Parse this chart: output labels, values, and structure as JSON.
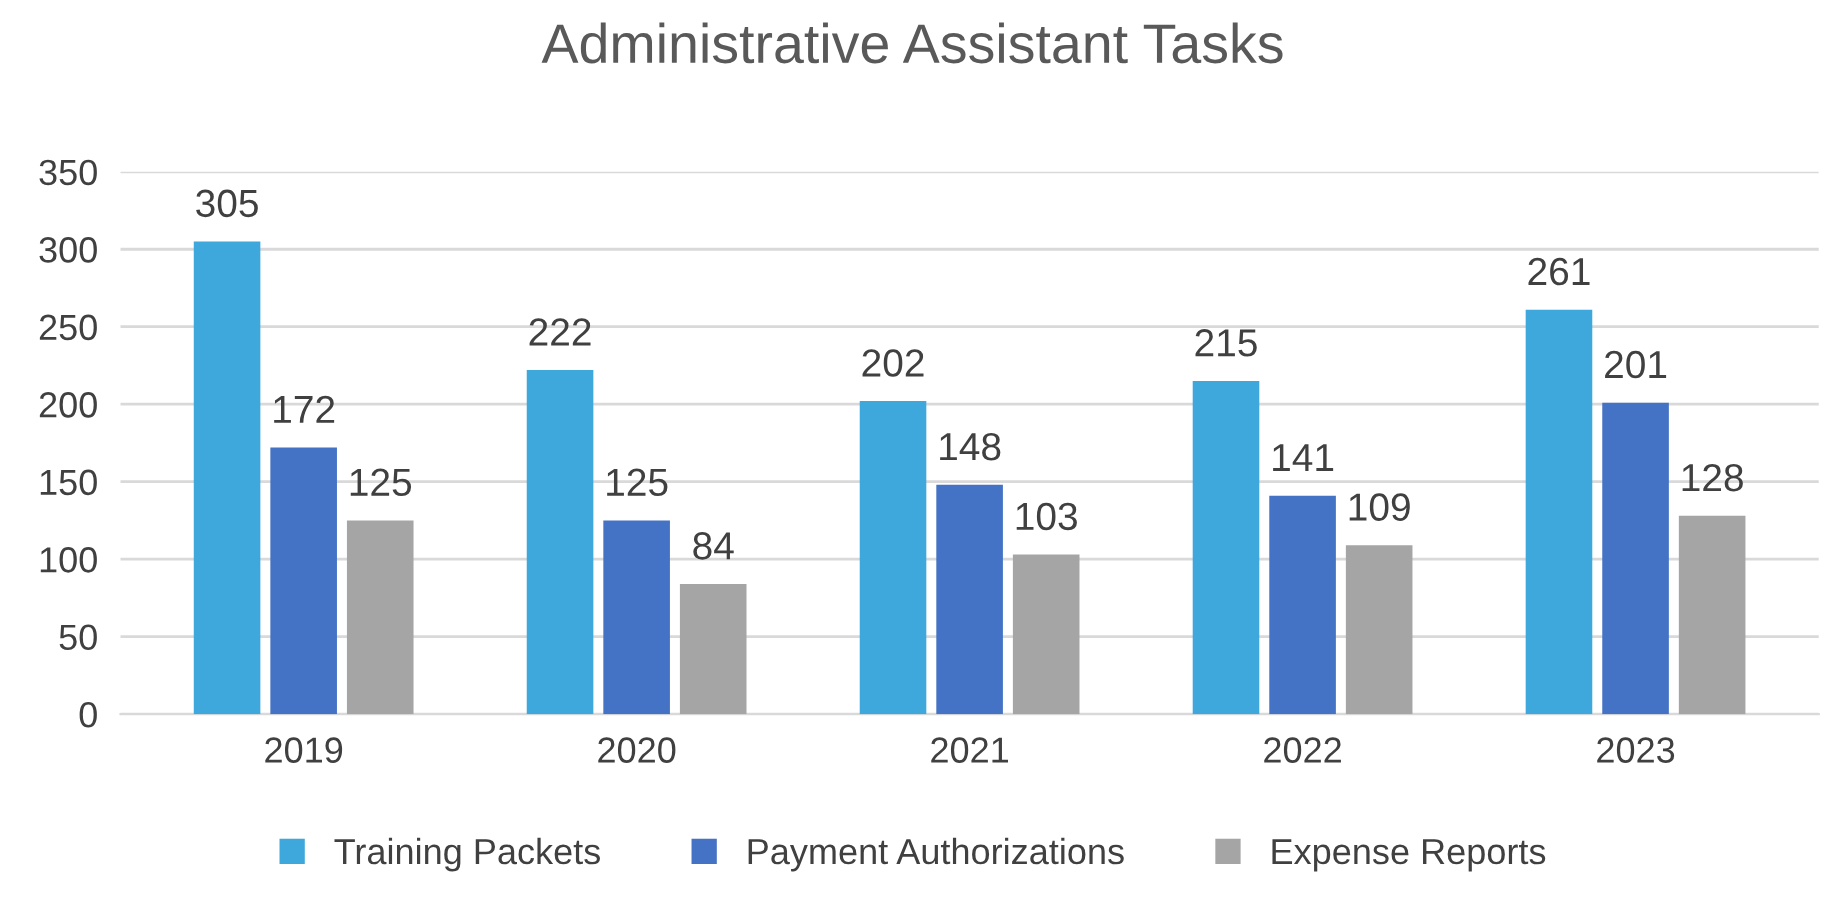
{
  "chart_data": {
    "type": "bar",
    "title": "Administrative Assistant Tasks",
    "categories": [
      "2019",
      "2020",
      "2021",
      "2022",
      "2023"
    ],
    "series": [
      {
        "name": "Training Packets",
        "color": "#3ea8dc",
        "values": [
          305,
          222,
          202,
          215,
          261
        ]
      },
      {
        "name": "Payment Authorizations",
        "color": "#4472c4",
        "values": [
          172,
          125,
          148,
          141,
          201
        ]
      },
      {
        "name": "Expense Reports",
        "color": "#a5a5a5",
        "values": [
          125,
          84,
          103,
          109,
          128
        ]
      }
    ],
    "ylim": [
      0,
      350
    ],
    "yticks": [
      0,
      50,
      100,
      150,
      200,
      250,
      300,
      350
    ],
    "grid": "y",
    "legend": "bottom",
    "data_labels": true
  }
}
